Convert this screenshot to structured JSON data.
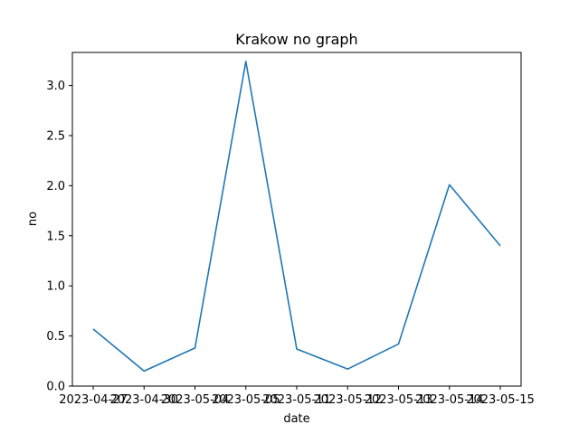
{
  "chart_data": {
    "type": "line",
    "title": "Krakow no graph",
    "xlabel": "date",
    "ylabel": "no",
    "x": [
      "2023-04-27",
      "2023-04-30",
      "2023-05-04",
      "2023-05-05",
      "2023-05-11",
      "2023-05-12",
      "2023-05-13",
      "2023-05-14",
      "2023-05-15"
    ],
    "series": [
      {
        "values": [
          0.57,
          0.15,
          0.38,
          3.24,
          0.37,
          0.17,
          0.42,
          2.01,
          1.4
        ],
        "color": "#1f77b4"
      }
    ],
    "ylim": [
      0,
      3.33
    ],
    "yticks": [
      0.0,
      0.5,
      1.0,
      1.5,
      2.0,
      2.5,
      3.0
    ],
    "ytick_labels": [
      "0.0",
      "0.5",
      "1.0",
      "1.5",
      "2.0",
      "2.5",
      "3.0"
    ],
    "grid": false,
    "legend": false
  }
}
